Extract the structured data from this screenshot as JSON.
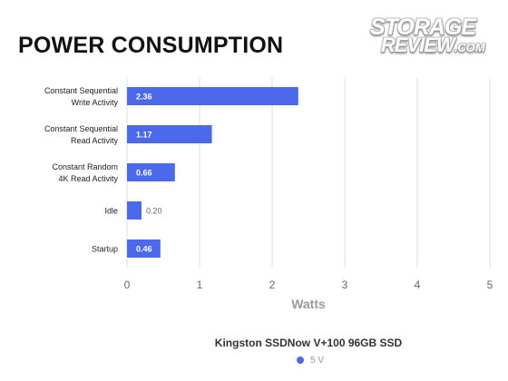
{
  "chart_data": {
    "type": "bar",
    "orientation": "horizontal",
    "title": "POWER CONSUMPTION",
    "watermark": [
      "STORAGE",
      "REVIEW",
      ".COM"
    ],
    "categories": [
      [
        "Constant Sequential",
        "Write Activity"
      ],
      [
        "Constant Sequential",
        "Read Activity"
      ],
      [
        "Constant Random",
        "4K Read Activity"
      ],
      [
        "Idle"
      ],
      [
        "Startup"
      ]
    ],
    "series": [
      {
        "name": "5 V",
        "values": [
          2.36,
          1.17,
          0.66,
          0.2,
          0.46
        ],
        "labels": [
          "2.36",
          "1.17",
          "0.66",
          "0.20",
          "0.46"
        ]
      }
    ],
    "xlabel": "Watts",
    "xlim": [
      0,
      5
    ],
    "xticks": [
      "0",
      "1",
      "2",
      "3",
      "4",
      "5"
    ],
    "grid": true,
    "legend_title": "Kingston SSDNow V+100 96GB SSD",
    "legend_position": "bottom",
    "colors": {
      "bar": "#4B69EA",
      "grid": "#DDDDDD",
      "label_inside": "#FFFFFF",
      "label_outside": "#666666"
    }
  }
}
